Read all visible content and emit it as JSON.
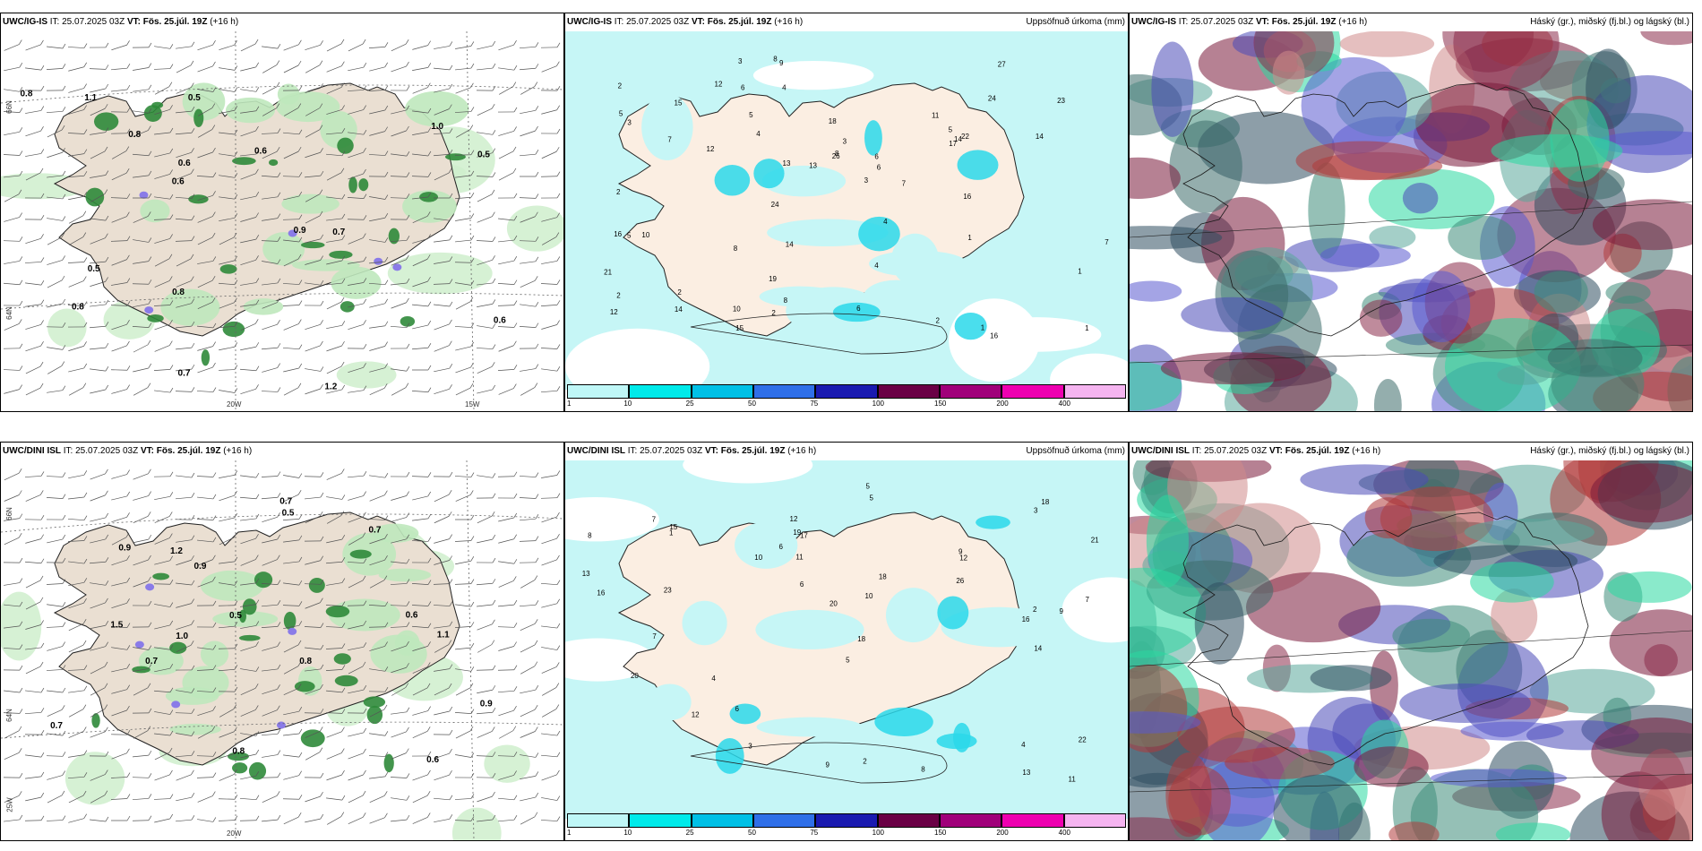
{
  "panels": [
    {
      "model": "UWC/IG-IS",
      "it": "IT: 25.07.2025 03Z",
      "vt": "VT: Fös. 25.júl. 19Z",
      "lead": "(+16 h)",
      "right_title": ""
    },
    {
      "model": "UWC/IG-IS",
      "it": "IT: 25.07.2025 03Z",
      "vt": "VT: Fös. 25.júl. 19Z",
      "lead": "(+16 h)",
      "right_title": "Uppsöfnuð úrkoma (mm)"
    },
    {
      "model": "UWC/IG-IS",
      "it": "IT: 25.07.2025 03Z",
      "vt": "VT: Fös. 25.júl. 19Z",
      "lead": "(+16 h)",
      "right_title": "Háský (gr.), miðský (fj.bl.) og lágský (bl.)"
    },
    {
      "model": "UWC/DINI ISL",
      "it": "IT: 25.07.2025 03Z",
      "vt": "VT: Fös. 25.júl. 19Z",
      "lead": "(+16 h)",
      "right_title": ""
    },
    {
      "model": "UWC/DINI ISL",
      "it": "IT: 25.07.2025 03Z",
      "vt": "VT: Fös. 25.júl. 19Z",
      "lead": "(+16 h)",
      "right_title": "Uppsöfnuð úrkoma (mm)"
    },
    {
      "model": "UWC/DINI ISL",
      "it": "IT: 25.07.2025 03Z",
      "vt": "VT: Fös. 25.júl. 19Z",
      "lead": "(+16 h)",
      "right_title": "Háský (gr.), miðský (fj.bl.) og lágský (bl.)"
    }
  ],
  "axis_labels": {
    "lat66": "66N",
    "lat64": "64N",
    "lon20": "20W",
    "lon15": "15W",
    "lon25": "25W"
  },
  "colorbar": {
    "labels": [
      "1",
      "10",
      "25",
      "50",
      "75",
      "100",
      "150",
      "200",
      "400"
    ],
    "colors": [
      "#bff7f7",
      "#00eaea",
      "#00c0e6",
      "#2f6fe8",
      "#1a1ab0",
      "#6a0045",
      "#a0007a",
      "#ee00b0",
      "#f5b4f0"
    ]
  },
  "precip_top": [
    "5",
    "2",
    "16",
    "13",
    "3",
    "6",
    "7",
    "1",
    "3",
    "8",
    "2",
    "1",
    "2",
    "15",
    "14",
    "13",
    "7",
    "1",
    "6",
    "5",
    "14",
    "23",
    "16",
    "10",
    "27",
    "14",
    "15",
    "6",
    "12",
    "4",
    "3",
    "8",
    "10",
    "16",
    "11",
    "24",
    "18",
    "17",
    "19",
    "5",
    "22",
    "9",
    "12",
    "2",
    "7",
    "3",
    "5",
    "12",
    "4",
    "2",
    "4",
    "24",
    "14",
    "26",
    "21",
    "8",
    "2",
    "1",
    "4",
    "6",
    "8"
  ],
  "precip_bottom": [
    "8",
    "7",
    "9",
    "12",
    "4",
    "9",
    "13",
    "18",
    "19",
    "16",
    "10",
    "3",
    "5",
    "12",
    "6",
    "20",
    "18",
    "11",
    "22",
    "14",
    "15",
    "6",
    "5",
    "16",
    "2",
    "7",
    "10",
    "21",
    "20",
    "12",
    "7",
    "26",
    "18",
    "23",
    "3",
    "1",
    "9",
    "4",
    "5",
    "2",
    "13",
    "8",
    "6",
    "17",
    "11"
  ],
  "rain_top": [
    "0.8",
    "0.6",
    "0.8",
    "0.5",
    "0.6",
    "0.7",
    "0.8",
    "0.7",
    "0.5",
    "0.9",
    "1.0",
    "0.6",
    "0.8",
    "0.6",
    "1.1",
    "1.2",
    "0.5"
  ],
  "rain_bottom": [
    "0.7",
    "0.9",
    "0.7",
    "0.5",
    "0.6",
    "0.8",
    "0.9",
    "1.5",
    "1.2",
    "0.5",
    "0.9",
    "0.6",
    "0.7",
    "1.0",
    "0.8",
    "1.1",
    "0.7"
  ]
}
